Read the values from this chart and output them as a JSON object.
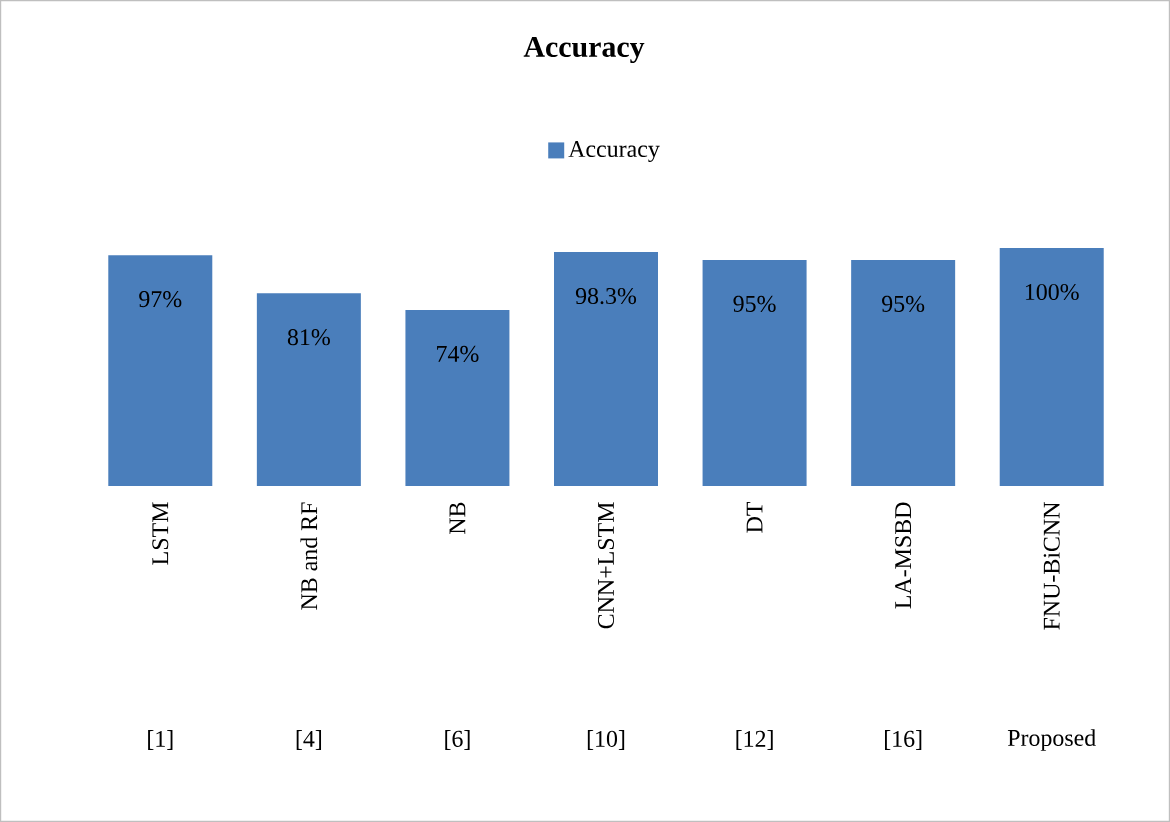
{
  "chart_data": {
    "type": "bar",
    "title": "Accuracy",
    "categories": [
      "LSTM",
      "NB and RF",
      "NB",
      "CNN+LSTM",
      "DT",
      "LA-MSBD",
      "FNU-BiCNN"
    ],
    "series": [
      {
        "name": "Accuracy",
        "color": "#4a7ebb",
        "values": [
          97,
          81,
          74,
          98.3,
          95,
          95,
          100
        ],
        "value_labels": [
          "97%",
          "81%",
          "74%",
          "98.3%",
          "95%",
          "95%",
          "100%"
        ]
      }
    ],
    "annotations": [
      "[1]",
      "[4]",
      "[6]",
      "[10]",
      "[12]",
      "[16]",
      "Proposed"
    ],
    "legend": "top"
  }
}
